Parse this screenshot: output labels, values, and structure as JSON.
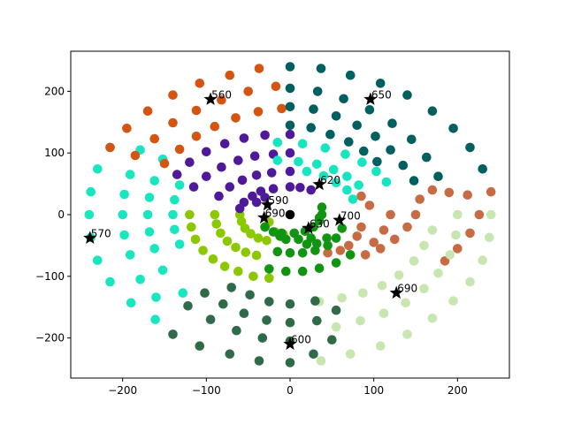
{
  "chart_data": {
    "type": "scatter",
    "xlim": [
      -262,
      262
    ],
    "ylim": [
      -265,
      265
    ],
    "x_ticks": [
      -200,
      -100,
      0,
      100,
      200
    ],
    "y_ticks": [
      -200,
      -100,
      0,
      100,
      200
    ],
    "x_tick_labels": [
      "−200",
      "−100",
      "0",
      "100",
      "200"
    ],
    "y_tick_labels": [
      "−200",
      "−100",
      "0",
      "100",
      "200"
    ],
    "grid": false,
    "legend": "none",
    "center_point": {
      "x": 0,
      "y": 0,
      "color": "#000000"
    },
    "series": [
      {
        "color": "#18e6bf",
        "points": [
          [
            -240,
            0
          ],
          [
            -238,
            37
          ],
          [
            -230,
            74
          ],
          [
            -238,
            -37
          ],
          [
            -230,
            -74
          ],
          [
            -215,
            109
          ],
          [
            -215,
            -109
          ],
          [
            -200,
            0
          ],
          [
            -198,
            33
          ],
          [
            -191,
            65
          ],
          [
            -198,
            -33
          ],
          [
            -191,
            -65
          ],
          [
            -170,
            0
          ],
          [
            -168,
            28
          ],
          [
            -162,
            55
          ],
          [
            -168,
            -28
          ],
          [
            -162,
            -55
          ],
          [
            -140,
            0
          ],
          [
            -138,
            24
          ],
          [
            -132,
            48
          ],
          [
            -138,
            -24
          ],
          [
            -132,
            -48
          ],
          [
            -179,
            105
          ],
          [
            -179,
            -105
          ],
          [
            -152,
            90
          ],
          [
            -152,
            -90
          ],
          [
            -128,
            -127
          ],
          [
            -160,
            -134
          ],
          [
            -190,
            -143
          ],
          [
            -161,
            -170
          ]
        ]
      },
      {
        "color": "#d45512",
        "points": [
          [
            -215,
            109
          ],
          [
            -195,
            140
          ],
          [
            -170,
            168
          ],
          [
            -140,
            194
          ],
          [
            -108,
            213
          ],
          [
            -72,
            226
          ],
          [
            -37,
            237
          ],
          [
            -185,
            96
          ],
          [
            -162,
            123
          ],
          [
            -140,
            149
          ],
          [
            -112,
            169
          ],
          [
            -82,
            186
          ],
          [
            -50,
            200
          ],
          [
            -17,
            208
          ],
          [
            -150,
            83
          ],
          [
            -132,
            106
          ],
          [
            -112,
            127
          ],
          [
            -90,
            143
          ],
          [
            -65,
            157
          ],
          [
            -38,
            167
          ],
          [
            -10,
            172
          ]
        ]
      },
      {
        "color": "#005f5f",
        "points": [
          [
            0,
            240
          ],
          [
            37,
            237
          ],
          [
            72,
            226
          ],
          [
            108,
            213
          ],
          [
            140,
            194
          ],
          [
            170,
            168
          ],
          [
            195,
            140
          ],
          [
            215,
            109
          ],
          [
            230,
            74
          ],
          [
            0,
            205
          ],
          [
            33,
            200
          ],
          [
            64,
            188
          ],
          [
            95,
            170
          ],
          [
            122,
            148
          ],
          [
            145,
            122
          ],
          [
            163,
            93
          ],
          [
            177,
            62
          ],
          [
            0,
            175
          ],
          [
            28,
            171
          ],
          [
            55,
            160
          ],
          [
            80,
            145
          ],
          [
            102,
            127
          ],
          [
            120,
            105
          ],
          [
            135,
            80
          ],
          [
            148,
            55
          ],
          [
            0,
            145
          ],
          [
            25,
            141
          ],
          [
            48,
            130
          ],
          [
            70,
            118
          ],
          [
            88,
            103
          ],
          [
            104,
            86
          ]
        ]
      },
      {
        "color": "#c76b44",
        "points": [
          [
            240,
            37
          ],
          [
            226,
            0
          ],
          [
            215,
            -30
          ],
          [
            200,
            -55
          ],
          [
            185,
            -75
          ],
          [
            212,
            32
          ],
          [
            190,
            36
          ],
          [
            170,
            40
          ],
          [
            155,
            25
          ],
          [
            150,
            0
          ],
          [
            140,
            -20
          ],
          [
            125,
            -40
          ],
          [
            108,
            -55
          ],
          [
            90,
            -65
          ],
          [
            85,
            -20
          ],
          [
            80,
            -35
          ],
          [
            70,
            -50
          ],
          [
            60,
            -58
          ],
          [
            45,
            -62
          ],
          [
            120,
            0
          ],
          [
            112,
            -25
          ],
          [
            100,
            -45
          ],
          [
            85,
            30
          ],
          [
            95,
            15
          ]
        ]
      },
      {
        "color": "#c8e6b0",
        "points": [
          [
            240,
            0
          ],
          [
            238,
            -37
          ],
          [
            230,
            -74
          ],
          [
            215,
            -109
          ],
          [
            195,
            -140
          ],
          [
            170,
            -168
          ],
          [
            140,
            -194
          ],
          [
            108,
            -213
          ],
          [
            72,
            -226
          ],
          [
            37,
            -237
          ],
          [
            200,
            0
          ],
          [
            198,
            -33
          ],
          [
            191,
            -65
          ],
          [
            177,
            -95
          ],
          [
            160,
            -120
          ],
          [
            138,
            -143
          ],
          [
            112,
            -160
          ],
          [
            84,
            -172
          ],
          [
            55,
            -182
          ],
          [
            170,
            -25
          ],
          [
            160,
            -50
          ],
          [
            148,
            -75
          ],
          [
            130,
            -98
          ],
          [
            110,
            -115
          ],
          [
            87,
            -127
          ],
          [
            62,
            -135
          ],
          [
            35,
            -141
          ]
        ]
      },
      {
        "color": "#2f6b48",
        "points": [
          [
            0,
            -240
          ],
          [
            -37,
            -237
          ],
          [
            -72,
            -226
          ],
          [
            -108,
            -213
          ],
          [
            -140,
            -194
          ],
          [
            0,
            -205
          ],
          [
            -33,
            -200
          ],
          [
            -64,
            -188
          ],
          [
            -95,
            -170
          ],
          [
            -122,
            -148
          ],
          [
            0,
            -175
          ],
          [
            -28,
            -171
          ],
          [
            -55,
            -160
          ],
          [
            -80,
            -145
          ],
          [
            -102,
            -127
          ],
          [
            0,
            -145
          ],
          [
            -25,
            -141
          ],
          [
            -48,
            -130
          ],
          [
            -70,
            -118
          ],
          [
            28,
            -226
          ],
          [
            50,
            -203
          ],
          [
            32,
            -172
          ],
          [
            55,
            -155
          ],
          [
            30,
            -140
          ]
        ]
      },
      {
        "color": "#8cc800",
        "points": [
          [
            -120,
            0
          ],
          [
            -118,
            -20
          ],
          [
            -113,
            -40
          ],
          [
            -104,
            -58
          ],
          [
            -92,
            -72
          ],
          [
            -78,
            -84
          ],
          [
            -62,
            -92
          ],
          [
            -44,
            -100
          ],
          [
            -25,
            -103
          ],
          [
            -90,
            0
          ],
          [
            -88,
            -15
          ],
          [
            -83,
            -30
          ],
          [
            -75,
            -43
          ],
          [
            -65,
            -53
          ],
          [
            -53,
            -61
          ],
          [
            -40,
            -66
          ],
          [
            -60,
            0
          ],
          [
            -58,
            -11
          ],
          [
            -54,
            -22
          ],
          [
            -47,
            -31
          ],
          [
            -38,
            -38
          ],
          [
            -28,
            -42
          ],
          [
            -30,
            -20
          ],
          [
            -25,
            -12
          ],
          [
            -18,
            -28
          ],
          [
            -8,
            -32
          ]
        ]
      },
      {
        "color": "#4f1a9a",
        "points": [
          [
            -135,
            65
          ],
          [
            -120,
            85
          ],
          [
            -100,
            102
          ],
          [
            -78,
            115
          ],
          [
            -55,
            124
          ],
          [
            -30,
            129
          ],
          [
            0,
            130
          ],
          [
            -115,
            45
          ],
          [
            -100,
            62
          ],
          [
            -82,
            77
          ],
          [
            -62,
            88
          ],
          [
            -42,
            95
          ],
          [
            -20,
            98
          ],
          [
            0,
            100
          ],
          [
            -85,
            30
          ],
          [
            -72,
            45
          ],
          [
            -57,
            56
          ],
          [
            -40,
            64
          ],
          [
            -22,
            68
          ],
          [
            0,
            70
          ],
          [
            -60,
            10
          ],
          [
            -55,
            20
          ],
          [
            -45,
            30
          ],
          [
            -35,
            38
          ],
          [
            -20,
            42
          ],
          [
            0,
            45
          ],
          [
            12,
            44
          ],
          [
            25,
            40
          ],
          [
            -40,
            20
          ],
          [
            -30,
            28
          ]
        ]
      },
      {
        "color": "#16e6c0",
        "points": [
          [
            -15,
            88
          ],
          [
            10,
            86
          ],
          [
            32,
            82
          ],
          [
            52,
            73
          ],
          [
            68,
            62
          ],
          [
            82,
            48
          ],
          [
            -15,
            117
          ],
          [
            15,
            115
          ],
          [
            42,
            108
          ],
          [
            66,
            98
          ],
          [
            86,
            85
          ],
          [
            103,
            70
          ],
          [
            115,
            53
          ],
          [
            20,
            70
          ],
          [
            40,
            63
          ],
          [
            55,
            52
          ],
          [
            68,
            40
          ],
          [
            75,
            25
          ]
        ]
      },
      {
        "color": "#119411",
        "points": [
          [
            -10,
            -30
          ],
          [
            5,
            -30
          ],
          [
            18,
            -27
          ],
          [
            28,
            -20
          ],
          [
            35,
            -10
          ],
          [
            38,
            0
          ],
          [
            38,
            12
          ],
          [
            35,
            -5
          ],
          [
            25,
            -38
          ],
          [
            10,
            -40
          ],
          [
            -5,
            -40
          ],
          [
            -15,
            -60
          ],
          [
            0,
            -62
          ],
          [
            15,
            -62
          ],
          [
            30,
            -58
          ],
          [
            45,
            -50
          ],
          [
            55,
            -38
          ],
          [
            62,
            -22
          ],
          [
            -25,
            -88
          ],
          [
            -5,
            -92
          ],
          [
            15,
            -92
          ],
          [
            35,
            -87
          ],
          [
            55,
            -78
          ],
          [
            72,
            -65
          ],
          [
            -30,
            -20
          ],
          [
            -20,
            -28
          ],
          [
            -12,
            -35
          ],
          [
            20,
            -48
          ],
          [
            32,
            -47
          ],
          [
            44,
            -38
          ]
        ]
      }
    ],
    "annotations": [
      {
        "x": -95,
        "y": 187,
        "label": "560"
      },
      {
        "x": 96,
        "y": 187,
        "label": "650"
      },
      {
        "x": -239,
        "y": -38,
        "label": "570"
      },
      {
        "x": 0,
        "y": -210,
        "label": "600"
      },
      {
        "x": 127,
        "y": -127,
        "label": "690"
      },
      {
        "x": 35,
        "y": 49,
        "label": "620"
      },
      {
        "x": 59,
        "y": -9,
        "label": "700"
      },
      {
        "x": 22,
        "y": -22,
        "label": "630"
      },
      {
        "x": -27,
        "y": 16,
        "label": "590"
      },
      {
        "x": -31,
        "y": -5,
        "label": "690"
      }
    ]
  }
}
